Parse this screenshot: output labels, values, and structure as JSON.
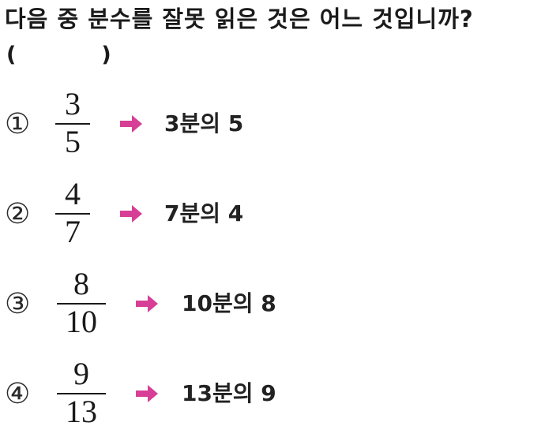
{
  "question": {
    "text": "다음 중 분수를 잘못 읽은 것은 어느 것입니까?",
    "blank_open": "(",
    "blank_close": ")"
  },
  "arrow_color": "#d63f95",
  "options": [
    {
      "marker": "①",
      "numerator": "3",
      "denominator": "5",
      "reading": "3분의 5"
    },
    {
      "marker": "②",
      "numerator": "4",
      "denominator": "7",
      "reading": "7분의 4"
    },
    {
      "marker": "③",
      "numerator": "8",
      "denominator": "10",
      "reading": "10분의 8"
    },
    {
      "marker": "④",
      "numerator": "9",
      "denominator": "13",
      "reading": "13분의 9"
    }
  ]
}
